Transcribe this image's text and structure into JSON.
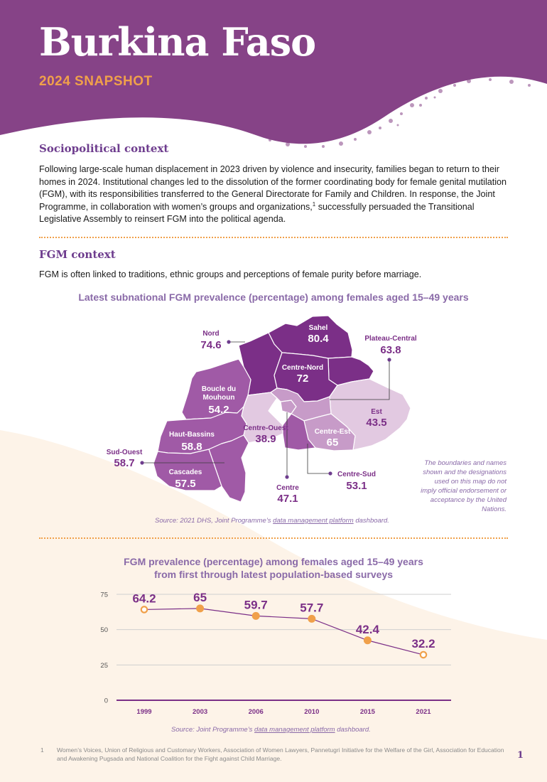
{
  "header": {
    "title": "Burkina Faso",
    "subtitle": "2024 SNAPSHOT"
  },
  "sociopolitical": {
    "heading": "Sociopolitical context",
    "text": "Following large-scale human displacement in 2023 driven by violence and insecurity, families began to return to their homes in 2024. Institutional changes led to the dissolution of the former coordinating body for female genital mutilation (FGM), with its responsibilities transferred to the General Directorate for Family and Children. In response, the Joint Programme, in collaboration with women’s groups and organizations,",
    "footnote_ref": "1",
    "text_end": " successfully persuaded the Transitional Legislative Assembly to reinsert FGM into the political agenda."
  },
  "fgm": {
    "heading": "FGM context",
    "text": "FGM is often linked to traditions, ethnic groups and perceptions of female purity before marriage."
  },
  "map": {
    "title": "Latest subnational FGM prevalence (percentage) among females aged 15–49 years",
    "regions": [
      {
        "name": "Sahel",
        "value": "80.4"
      },
      {
        "name": "Nord",
        "value": "74.6"
      },
      {
        "name": "Plateau-Central",
        "value": "63.8"
      },
      {
        "name": "Centre-Nord",
        "value": "72"
      },
      {
        "name": "Boucle du Mouhoun",
        "value": "54.2"
      },
      {
        "name": "Est",
        "value": "43.5"
      },
      {
        "name": "Centre-Ouest",
        "value": "38.9"
      },
      {
        "name": "Centre-Est",
        "value": "65"
      },
      {
        "name": "Haut-Bassins",
        "value": "58.8"
      },
      {
        "name": "Sud-Ouest",
        "value": "58.7"
      },
      {
        "name": "Cascades",
        "value": "57.5"
      },
      {
        "name": "Centre-Sud",
        "value": "53.1"
      },
      {
        "name": "Centre",
        "value": "47.1"
      }
    ],
    "source_prefix": "Source: 2021 DHS, Joint Programme’s ",
    "source_link": "data management platform",
    "source_suffix": " dashboard.",
    "disclaimer": "The boundaries and names shown and the designations used on this map do not imply official endorsement or acceptance by the United Nations.",
    "colors": {
      "dark": "#7b2f87",
      "mid": "#a05aa6",
      "light": "#c79bc8",
      "pale": "#e2c9e1"
    }
  },
  "trend": {
    "title_line1": "FGM prevalence (percentage) among females aged 15–49 years",
    "title_line2": "from first through latest population-based surveys",
    "source_prefix": "Source: Joint Programme’s ",
    "source_link": "data management platform",
    "source_suffix": " dashboard."
  },
  "chart_data": {
    "type": "line",
    "title": "FGM prevalence (percentage) among females aged 15–49 years from first through latest population-based surveys",
    "x": [
      "1999",
      "2003",
      "2006",
      "2010",
      "2015",
      "2021"
    ],
    "values": [
      64.2,
      65,
      59.7,
      57.7,
      42.4,
      32.2
    ],
    "value_labels": [
      "64.2",
      "65",
      "59.7",
      "57.7",
      "42.4",
      "32.2"
    ],
    "yticks": [
      "0",
      "25",
      "50",
      "75"
    ],
    "ylim": [
      0,
      75
    ],
    "grid": true,
    "line_color": "#7b2f87",
    "marker_color": "#f0a04a"
  },
  "footnote": {
    "number": "1",
    "text": "Women’s Voices, Union of Religious and Customary Workers, Association of Women Lawyers, Pannetugri Initiative for the Welfare of the Girl, Association for Education and Awakening Pugsada and National Coalition for the Fight against Child Marriage."
  },
  "page_number": "1"
}
